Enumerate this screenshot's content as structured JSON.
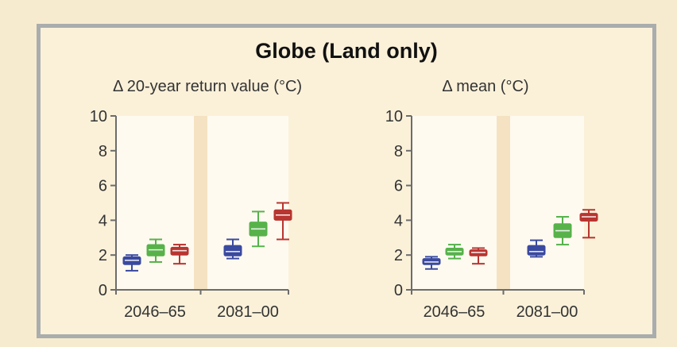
{
  "title": "Globe (Land only)",
  "colors": {
    "page_bg": "#f7ebcf",
    "panel_bg": "#fffaf0",
    "separator": "#f4e2c2",
    "axis": "#6c6c6c",
    "series": [
      "#3a4aa0",
      "#57b24a",
      "#b83530"
    ]
  },
  "chart_data": [
    {
      "type": "box",
      "title": "Δ 20-year return value (°C)",
      "categories": [
        "2046–65",
        "2081–00"
      ],
      "yticks": [
        "0",
        "2",
        "4",
        "6",
        "8",
        "10"
      ],
      "ylim": [
        0,
        10
      ],
      "series": [
        {
          "color": "#3a4aa0",
          "boxes": [
            {
              "category": "2046–65",
              "min": 1.1,
              "q1": 1.45,
              "median": 1.7,
              "q3": 1.9,
              "max": 2.0
            },
            {
              "category": "2081–00",
              "min": 1.8,
              "q1": 1.95,
              "median": 2.2,
              "q3": 2.55,
              "max": 2.9
            }
          ]
        },
        {
          "color": "#57b24a",
          "boxes": [
            {
              "category": "2046–65",
              "min": 1.6,
              "q1": 1.95,
              "median": 2.3,
              "q3": 2.6,
              "max": 2.9
            },
            {
              "category": "2081–00",
              "min": 2.5,
              "q1": 3.1,
              "median": 3.5,
              "q3": 3.9,
              "max": 4.5
            }
          ]
        },
        {
          "color": "#b83530",
          "boxes": [
            {
              "category": "2046–65",
              "min": 1.5,
              "q1": 2.0,
              "median": 2.25,
              "q3": 2.45,
              "max": 2.6
            },
            {
              "category": "2081–00",
              "min": 2.9,
              "q1": 4.0,
              "median": 4.3,
              "q3": 4.6,
              "max": 5.0
            }
          ]
        }
      ]
    },
    {
      "type": "box",
      "title": "Δ mean (°C)",
      "categories": [
        "2046–65",
        "2081–00"
      ],
      "yticks": [
        "0",
        "2",
        "4",
        "6",
        "8",
        "10"
      ],
      "ylim": [
        0,
        10
      ],
      "series": [
        {
          "color": "#3a4aa0",
          "boxes": [
            {
              "category": "2046–65",
              "min": 1.2,
              "q1": 1.45,
              "median": 1.6,
              "q3": 1.8,
              "max": 1.9
            },
            {
              "category": "2081–00",
              "min": 1.9,
              "q1": 2.0,
              "median": 2.2,
              "q3": 2.55,
              "max": 2.85
            }
          ]
        },
        {
          "color": "#57b24a",
          "boxes": [
            {
              "category": "2046–65",
              "min": 1.8,
              "q1": 2.0,
              "median": 2.2,
              "q3": 2.4,
              "max": 2.6
            },
            {
              "category": "2081–00",
              "min": 2.6,
              "q1": 3.0,
              "median": 3.4,
              "q3": 3.8,
              "max": 4.2
            }
          ]
        },
        {
          "color": "#b83530",
          "boxes": [
            {
              "category": "2046–65",
              "min": 1.5,
              "q1": 1.95,
              "median": 2.15,
              "q3": 2.3,
              "max": 2.4
            },
            {
              "category": "2081–00",
              "min": 3.0,
              "q1": 3.95,
              "median": 4.2,
              "q3": 4.4,
              "max": 4.6
            }
          ]
        }
      ]
    }
  ]
}
